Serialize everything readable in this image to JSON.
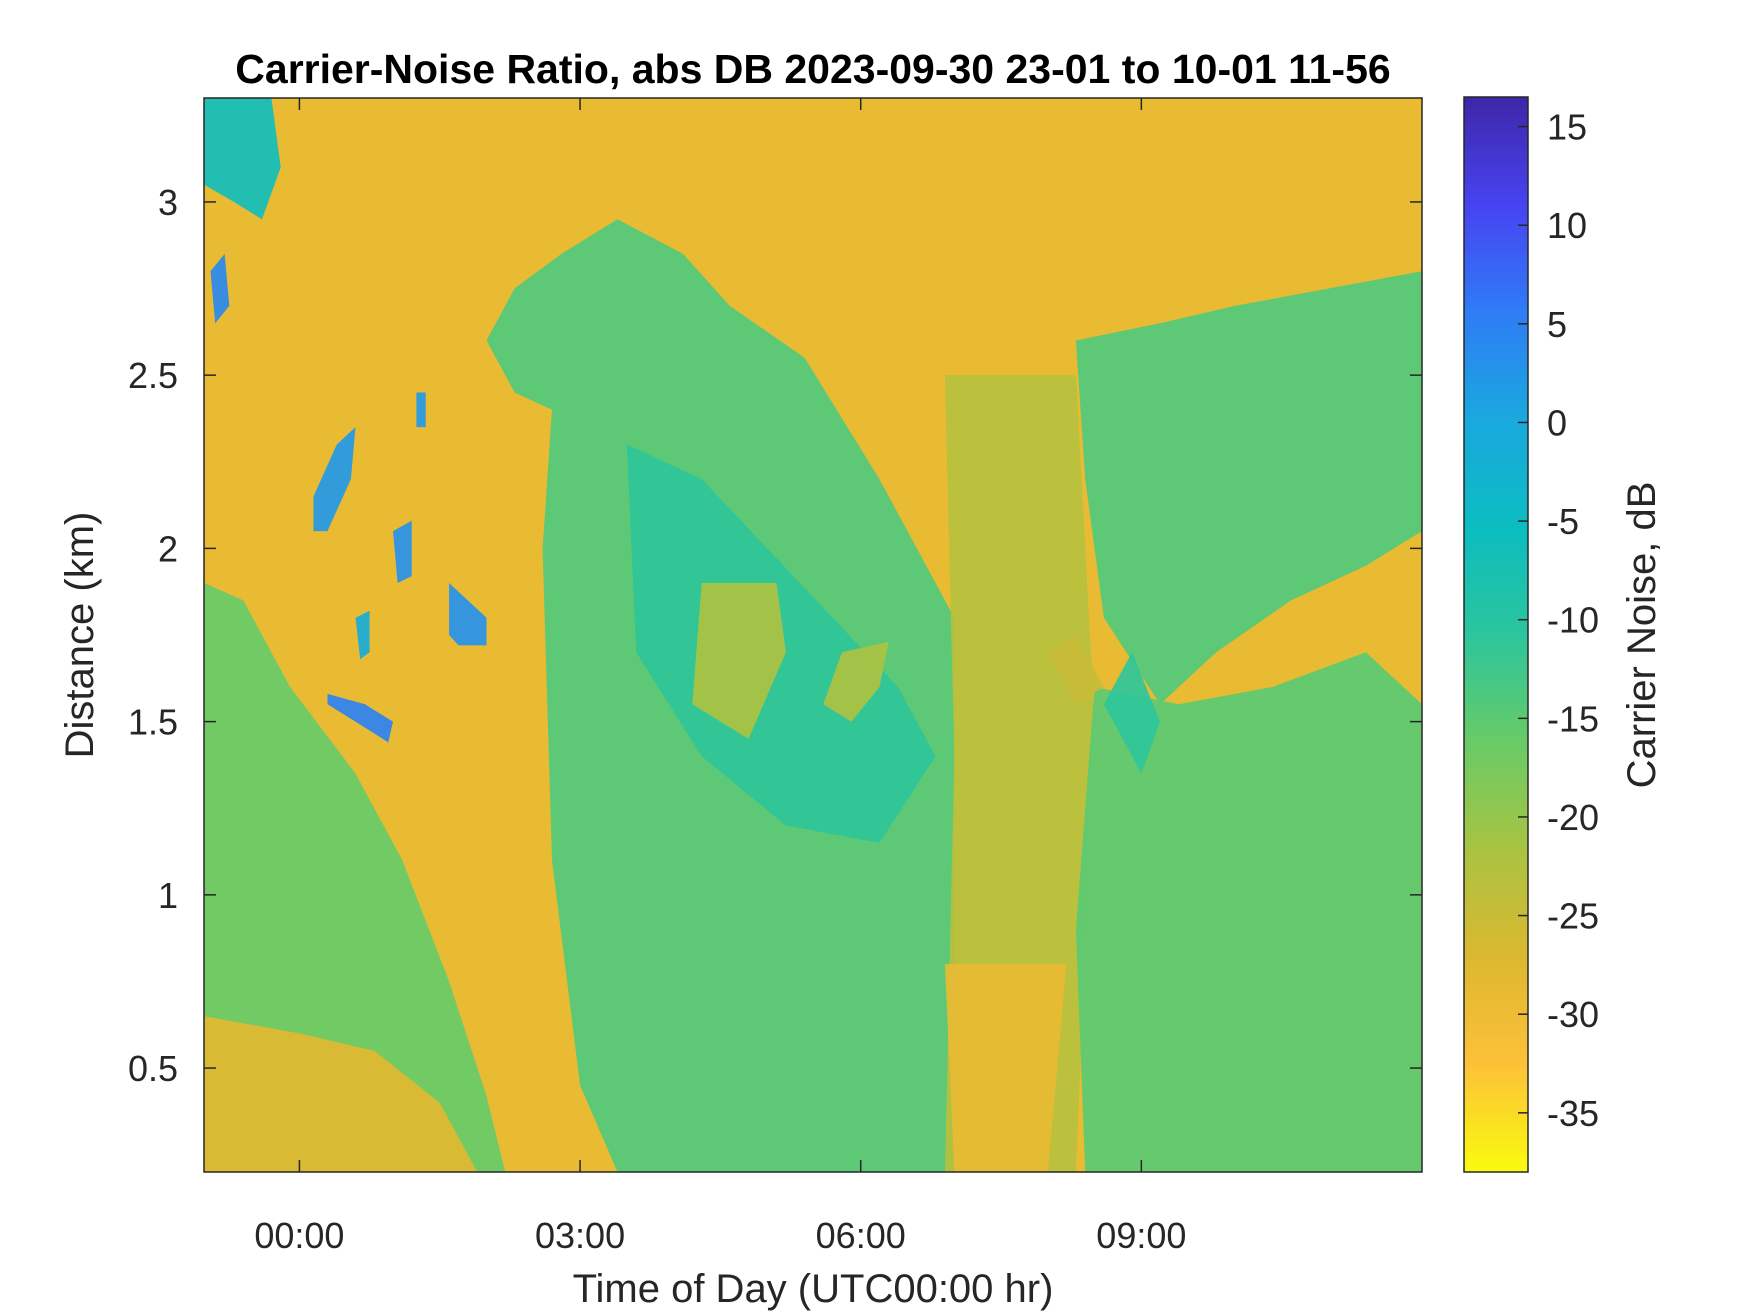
{
  "chart_data": {
    "type": "heatmap",
    "title": "Carrier-Noise Ratio, abs DB 2023-09-30 23-01 to 10-01 11-56",
    "xlabel": "Time of Day (UTC00:00 hr)",
    "ylabel": "Distance (km)",
    "colorbar_label": "Carrier Noise, dB",
    "x_unit": "hours UTC",
    "xlim": [
      -1.02,
      12.0
    ],
    "ylim": [
      0.2,
      3.3
    ],
    "clim": [
      -38,
      16.5
    ],
    "x_ticks": [
      {
        "value": 0,
        "label": "00:00"
      },
      {
        "value": 3,
        "label": "03:00"
      },
      {
        "value": 6,
        "label": "06:00"
      },
      {
        "value": 9,
        "label": "09:00"
      }
    ],
    "y_ticks": [
      {
        "value": 0.5,
        "label": "0.5"
      },
      {
        "value": 1,
        "label": "1"
      },
      {
        "value": 1.5,
        "label": "1.5"
      },
      {
        "value": 2,
        "label": "2"
      },
      {
        "value": 2.5,
        "label": "2.5"
      },
      {
        "value": 3,
        "label": "3"
      }
    ],
    "colorbar_ticks": [
      {
        "value": 15,
        "label": "15"
      },
      {
        "value": 10,
        "label": "10"
      },
      {
        "value": 5,
        "label": "5"
      },
      {
        "value": 0,
        "label": "0"
      },
      {
        "value": -5,
        "label": "-5"
      },
      {
        "value": -10,
        "label": "-10"
      },
      {
        "value": -15,
        "label": "-15"
      },
      {
        "value": -20,
        "label": "-20"
      },
      {
        "value": -25,
        "label": "-25"
      },
      {
        "value": -30,
        "label": "-30"
      },
      {
        "value": -35,
        "label": "-35"
      }
    ],
    "colormap": "parula",
    "colormap_stops": [
      "#3e26a8",
      "#4743f1",
      "#2f7cf6",
      "#1aa8df",
      "#0bbdc0",
      "#2cc59d",
      "#68cb66",
      "#a9c342",
      "#dcb830",
      "#fdc138",
      "#f9fb0e"
    ],
    "background_cnr": -29,
    "regions": [
      {
        "shape": "poly",
        "value": -16,
        "points": [
          [
            -1.02,
            1.9
          ],
          [
            -0.6,
            1.85
          ],
          [
            -0.1,
            1.6
          ],
          [
            0.6,
            1.35
          ],
          [
            1.1,
            1.1
          ],
          [
            1.6,
            0.75
          ],
          [
            2.0,
            0.42
          ],
          [
            2.2,
            0.2
          ],
          [
            -1.02,
            0.2
          ]
        ]
      },
      {
        "shape": "poly",
        "value": -28,
        "points": [
          [
            -1.02,
            0.2
          ],
          [
            1.9,
            0.2
          ],
          [
            1.5,
            0.4
          ],
          [
            0.8,
            0.55
          ],
          [
            0.0,
            0.6
          ],
          [
            -1.02,
            0.65
          ]
        ]
      },
      {
        "shape": "poly",
        "value": -14,
        "points": [
          [
            2.0,
            2.6
          ],
          [
            2.3,
            2.75
          ],
          [
            2.8,
            2.85
          ],
          [
            3.4,
            2.95
          ],
          [
            4.1,
            2.85
          ],
          [
            4.6,
            2.7
          ],
          [
            5.4,
            2.55
          ],
          [
            6.2,
            2.2
          ],
          [
            7.0,
            1.8
          ],
          [
            7.0,
            0.2
          ],
          [
            3.4,
            0.2
          ],
          [
            3.0,
            0.45
          ],
          [
            2.7,
            1.1
          ],
          [
            2.6,
            2.0
          ],
          [
            2.7,
            2.4
          ],
          [
            2.3,
            2.45
          ]
        ]
      },
      {
        "shape": "poly",
        "value": -11,
        "points": [
          [
            3.5,
            2.3
          ],
          [
            4.3,
            2.2
          ],
          [
            5.0,
            2.0
          ],
          [
            5.7,
            1.8
          ],
          [
            6.4,
            1.6
          ],
          [
            6.8,
            1.4
          ],
          [
            6.2,
            1.15
          ],
          [
            5.2,
            1.2
          ],
          [
            4.3,
            1.4
          ],
          [
            3.6,
            1.7
          ]
        ]
      },
      {
        "shape": "poly",
        "value": -22,
        "points": [
          [
            4.3,
            1.9
          ],
          [
            5.1,
            1.9
          ],
          [
            5.2,
            1.7
          ],
          [
            4.8,
            1.45
          ],
          [
            4.2,
            1.55
          ]
        ]
      },
      {
        "shape": "poly",
        "value": -22,
        "points": [
          [
            5.8,
            1.7
          ],
          [
            6.3,
            1.73
          ],
          [
            6.2,
            1.6
          ],
          [
            5.9,
            1.5
          ],
          [
            5.6,
            1.55
          ]
        ]
      },
      {
        "shape": "poly",
        "value": -23,
        "points": [
          [
            6.9,
            2.5
          ],
          [
            8.3,
            2.5
          ],
          [
            8.5,
            1.5
          ],
          [
            8.3,
            0.2
          ],
          [
            6.9,
            0.2
          ],
          [
            7.0,
            1.4
          ]
        ]
      },
      {
        "shape": "poly",
        "value": -29,
        "points": [
          [
            6.9,
            0.8
          ],
          [
            8.2,
            0.8
          ],
          [
            8.0,
            0.2
          ],
          [
            7.0,
            0.2
          ]
        ]
      },
      {
        "shape": "poly",
        "value": -14,
        "points": [
          [
            8.3,
            2.6
          ],
          [
            9.2,
            2.65
          ],
          [
            10.0,
            2.7
          ],
          [
            11.0,
            2.75
          ],
          [
            12.0,
            2.8
          ],
          [
            12.0,
            2.05
          ],
          [
            11.4,
            1.95
          ],
          [
            10.6,
            1.85
          ],
          [
            9.8,
            1.7
          ],
          [
            9.2,
            1.55
          ],
          [
            8.6,
            1.8
          ],
          [
            8.4,
            2.2
          ]
        ]
      },
      {
        "shape": "poly",
        "value": -15,
        "points": [
          [
            8.5,
            1.6
          ],
          [
            9.4,
            1.55
          ],
          [
            10.4,
            1.6
          ],
          [
            11.4,
            1.7
          ],
          [
            12.0,
            1.55
          ],
          [
            12.0,
            0.2
          ],
          [
            8.4,
            0.2
          ],
          [
            8.3,
            0.9
          ]
        ]
      },
      {
        "shape": "poly",
        "value": -11,
        "points": [
          [
            8.6,
            1.55
          ],
          [
            9.0,
            1.35
          ],
          [
            9.2,
            1.5
          ],
          [
            8.9,
            1.7
          ]
        ]
      },
      {
        "shape": "poly",
        "value": -25,
        "points": [
          [
            8.0,
            1.7
          ],
          [
            8.3,
            1.75
          ],
          [
            8.6,
            1.6
          ],
          [
            8.3,
            1.55
          ]
        ]
      },
      {
        "shape": "poly",
        "value": 5,
        "points": [
          [
            0.3,
            1.58
          ],
          [
            0.7,
            1.55
          ],
          [
            1.0,
            1.5
          ],
          [
            0.95,
            1.44
          ],
          [
            0.6,
            1.5
          ],
          [
            0.3,
            1.55
          ]
        ]
      },
      {
        "shape": "poly",
        "value": 2,
        "points": [
          [
            0.15,
            2.15
          ],
          [
            0.4,
            2.3
          ],
          [
            0.6,
            2.35
          ],
          [
            0.55,
            2.2
          ],
          [
            0.3,
            2.05
          ],
          [
            0.15,
            2.05
          ]
        ]
      },
      {
        "shape": "poly",
        "value": 3,
        "points": [
          [
            1.6,
            1.9
          ],
          [
            1.8,
            1.85
          ],
          [
            2.0,
            1.8
          ],
          [
            2.0,
            1.72
          ],
          [
            1.7,
            1.72
          ],
          [
            1.6,
            1.75
          ]
        ]
      },
      {
        "shape": "poly",
        "value": 3,
        "points": [
          [
            1.0,
            2.05
          ],
          [
            1.2,
            2.08
          ],
          [
            1.2,
            1.92
          ],
          [
            1.05,
            1.9
          ]
        ]
      },
      {
        "shape": "poly",
        "value": 4,
        "points": [
          [
            -0.95,
            2.8
          ],
          [
            -0.8,
            2.85
          ],
          [
            -0.75,
            2.7
          ],
          [
            -0.9,
            2.65
          ]
        ]
      },
      {
        "shape": "poly",
        "value": -6,
        "points": [
          [
            -1.02,
            3.3
          ],
          [
            -0.3,
            3.3
          ],
          [
            -0.2,
            3.1
          ],
          [
            -0.4,
            2.95
          ],
          [
            -0.7,
            3.0
          ],
          [
            -1.02,
            3.05
          ]
        ]
      },
      {
        "shape": "poly",
        "value": -1,
        "points": [
          [
            0.6,
            1.8
          ],
          [
            0.75,
            1.82
          ],
          [
            0.75,
            1.7
          ],
          [
            0.65,
            1.68
          ]
        ]
      },
      {
        "shape": "poly",
        "value": 2,
        "points": [
          [
            1.25,
            2.45
          ],
          [
            1.35,
            2.45
          ],
          [
            1.35,
            2.35
          ],
          [
            1.25,
            2.35
          ]
        ]
      }
    ]
  }
}
